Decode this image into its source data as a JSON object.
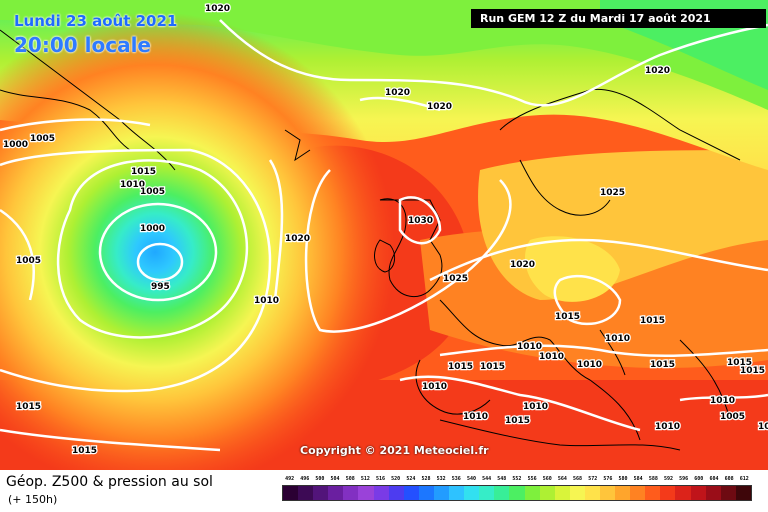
{
  "header": {
    "date": "Lundi 23 août 2021",
    "time": "20:00 locale",
    "run": "Run GEM 12 Z du Mardi 17 août 2021"
  },
  "copyright": "Copyright © 2021 Meteociel.fr",
  "legend": {
    "title": "Géop. Z500 & pression au sol",
    "subtitle": "(+ 150h)",
    "scale": [
      {
        "label": "492",
        "color": "#2b0033"
      },
      {
        "label": "496",
        "color": "#3d0a55"
      },
      {
        "label": "500",
        "color": "#52147a"
      },
      {
        "label": "504",
        "color": "#6a1fa0"
      },
      {
        "label": "508",
        "color": "#8230c2"
      },
      {
        "label": "512",
        "color": "#9a42d9"
      },
      {
        "label": "516",
        "color": "#7a3be6"
      },
      {
        "label": "520",
        "color": "#4d3cf0"
      },
      {
        "label": "524",
        "color": "#2450ff"
      },
      {
        "label": "528",
        "color": "#1c77ff"
      },
      {
        "label": "532",
        "color": "#229cff"
      },
      {
        "label": "536",
        "color": "#2ec2ff"
      },
      {
        "label": "540",
        "color": "#32e0f0"
      },
      {
        "label": "544",
        "color": "#36edc8"
      },
      {
        "label": "548",
        "color": "#38ee98"
      },
      {
        "label": "552",
        "color": "#4cef62"
      },
      {
        "label": "556",
        "color": "#7ef03d"
      },
      {
        "label": "560",
        "color": "#aef033"
      },
      {
        "label": "564",
        "color": "#d9f43a"
      },
      {
        "label": "568",
        "color": "#f6f552"
      },
      {
        "label": "572",
        "color": "#ffe24a"
      },
      {
        "label": "576",
        "color": "#ffc53b"
      },
      {
        "label": "580",
        "color": "#ffa52c"
      },
      {
        "label": "584",
        "color": "#ff8222"
      },
      {
        "label": "588",
        "color": "#ff5c1c"
      },
      {
        "label": "592",
        "color": "#f43a1a"
      },
      {
        "label": "596",
        "color": "#dc231a"
      },
      {
        "label": "600",
        "color": "#c0141a"
      },
      {
        "label": "604",
        "color": "#9a0d18"
      },
      {
        "label": "608",
        "color": "#6e0a12"
      },
      {
        "label": "612",
        "color": "#3e060a"
      }
    ]
  },
  "isobars": [
    {
      "label": "1020",
      "at": [
        205,
        2
      ]
    },
    {
      "label": "1000",
      "at": [
        3,
        138
      ]
    },
    {
      "label": "1005",
      "at": [
        30,
        132
      ]
    },
    {
      "label": "1015",
      "at": [
        131,
        165
      ]
    },
    {
      "label": "1010",
      "at": [
        120,
        178
      ]
    },
    {
      "label": "1005",
      "at": [
        140,
        185
      ]
    },
    {
      "label": "1000",
      "at": [
        140,
        222
      ]
    },
    {
      "label": "995",
      "at": [
        151,
        280
      ]
    },
    {
      "label": "1005",
      "at": [
        16,
        254
      ]
    },
    {
      "label": "1020",
      "at": [
        285,
        232
      ]
    },
    {
      "label": "1010",
      "at": [
        254,
        294
      ]
    },
    {
      "label": "1015",
      "at": [
        16,
        400
      ]
    },
    {
      "label": "1015",
      "at": [
        72,
        444
      ]
    },
    {
      "label": "1020",
      "at": [
        385,
        86
      ]
    },
    {
      "label": "1020",
      "at": [
        427,
        100
      ]
    },
    {
      "label": "1020",
      "at": [
        645,
        64
      ]
    },
    {
      "label": "1030",
      "at": [
        408,
        214
      ]
    },
    {
      "label": "1025",
      "at": [
        443,
        272
      ]
    },
    {
      "label": "1020",
      "at": [
        510,
        258
      ]
    },
    {
      "label": "1025",
      "at": [
        600,
        186
      ]
    },
    {
      "label": "1015",
      "at": [
        555,
        310
      ]
    },
    {
      "label": "1010",
      "at": [
        605,
        332
      ]
    },
    {
      "label": "1015",
      "at": [
        640,
        314
      ]
    },
    {
      "label": "1010",
      "at": [
        517,
        340
      ]
    },
    {
      "label": "1010",
      "at": [
        539,
        350
      ]
    },
    {
      "label": "1010",
      "at": [
        577,
        358
      ]
    },
    {
      "label": "1015",
      "at": [
        448,
        360
      ]
    },
    {
      "label": "1015",
      "at": [
        480,
        360
      ]
    },
    {
      "label": "1015",
      "at": [
        650,
        358
      ]
    },
    {
      "label": "1015",
      "at": [
        727,
        356
      ]
    },
    {
      "label": "1015",
      "at": [
        740,
        364
      ]
    },
    {
      "label": "1010",
      "at": [
        422,
        380
      ]
    },
    {
      "label": "1010",
      "at": [
        710,
        394
      ]
    },
    {
      "label": "1010",
      "at": [
        523,
        400
      ]
    },
    {
      "label": "1010",
      "at": [
        463,
        410
      ]
    },
    {
      "label": "1015",
      "at": [
        505,
        414
      ]
    },
    {
      "label": "1010",
      "at": [
        655,
        420
      ]
    },
    {
      "label": "1005",
      "at": [
        720,
        410
      ]
    },
    {
      "label": "1010",
      "at": [
        758,
        420
      ]
    }
  ]
}
